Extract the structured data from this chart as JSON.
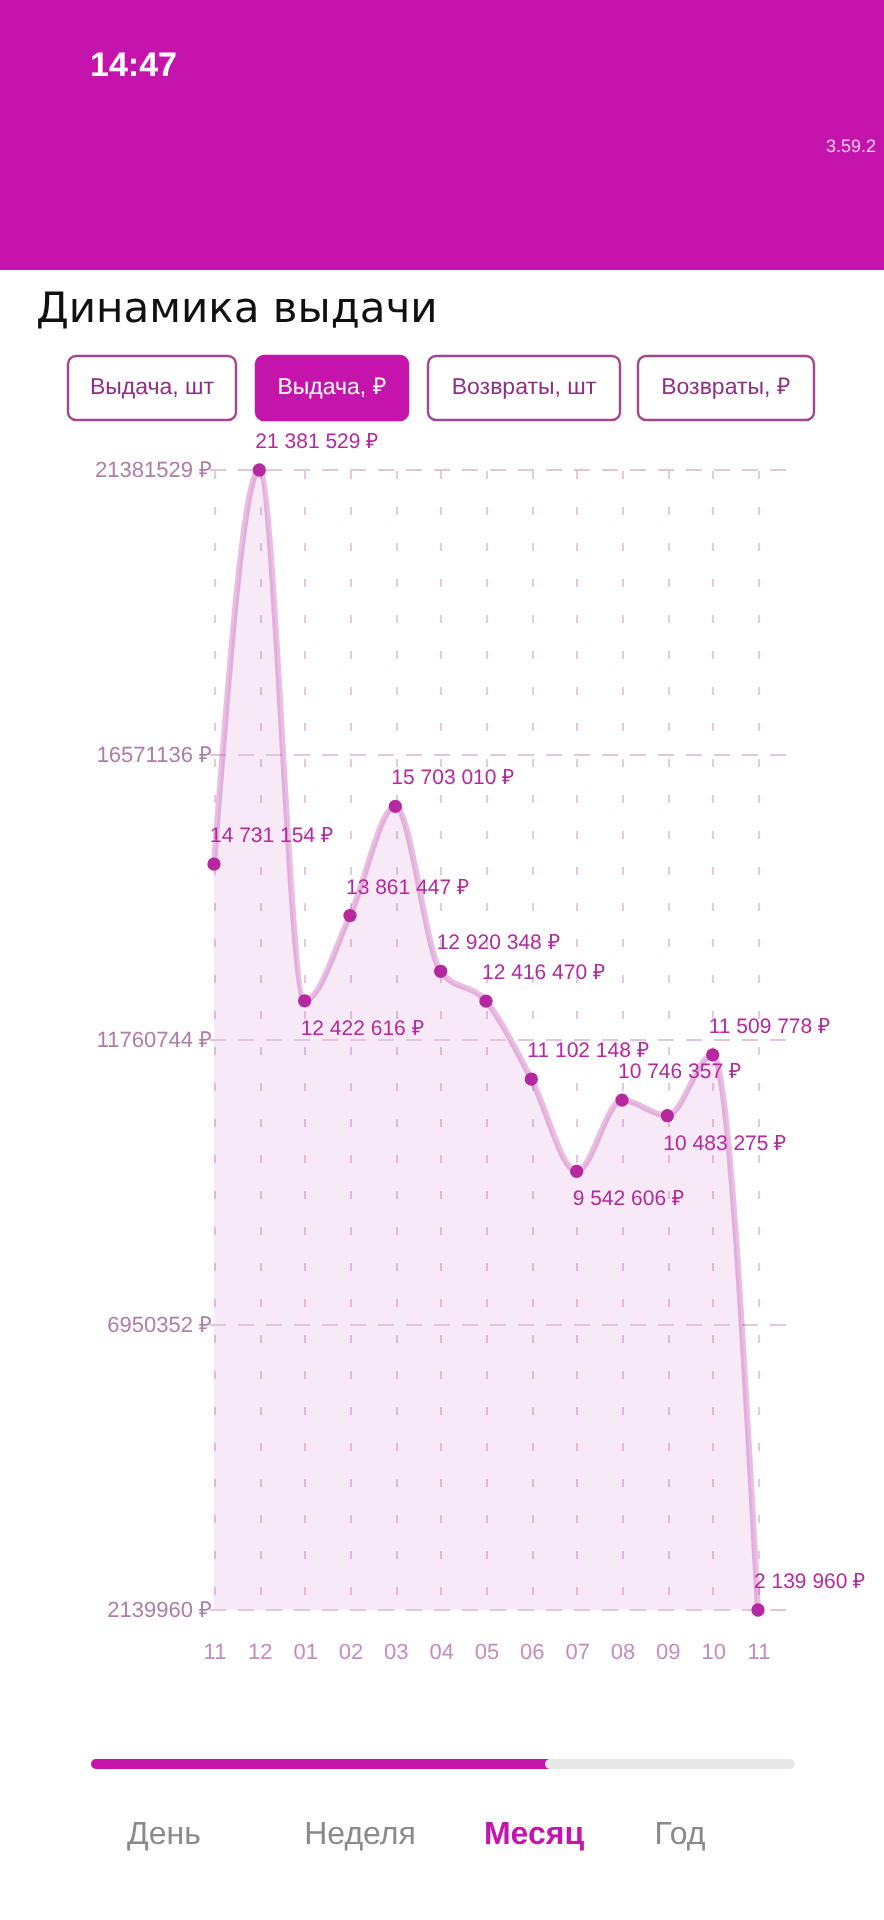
{
  "chart_data": {
    "type": "area",
    "title": "Динамика выдачи",
    "categories": [
      "11",
      "12",
      "01",
      "02",
      "03",
      "04",
      "05",
      "06",
      "07",
      "08",
      "09",
      "10",
      "11"
    ],
    "values": [
      14731154,
      21381529,
      12422616,
      13861447,
      15703010,
      12920348,
      12416470,
      11102148,
      9542606,
      10746357,
      10483275,
      11509778,
      2139960
    ],
    "value_labels": [
      "14 731 154 ₽",
      "21 381 529 ₽",
      "12 422 616 ₽",
      "13 861 447 ₽",
      "15 703 010 ₽",
      "12 920 348 ₽",
      "12 416 470 ₽",
      "11 102 148 ₽",
      "9 542 606 ₽",
      "10 746 357 ₽",
      "10 483 275 ₽",
      "11 509 778 ₽",
      "2 139 960 ₽"
    ],
    "color": "#b5289f",
    "ylim": [
      2139960,
      21381529
    ],
    "yticks": [
      {
        "value": 2139960,
        "label": "2139960 ₽"
      },
      {
        "value": 6950352,
        "label": "6950352 ₽"
      },
      {
        "value": 11760744,
        "label": "11760744 ₽"
      },
      {
        "value": 16571136,
        "label": "16571136 ₽"
      },
      {
        "value": 21381529,
        "label": "21381529 ₽"
      }
    ],
    "grid": true,
    "marker": "circle",
    "line_style": "solid",
    "annotations": [
      "14:47",
      "3.59.2",
      "Выдача, шт",
      "Выдача, ₽",
      "Возвраты, шт",
      "Возвраты, ₽",
      "День",
      "Неделя",
      "Месяц",
      "Год"
    ]
  }
}
